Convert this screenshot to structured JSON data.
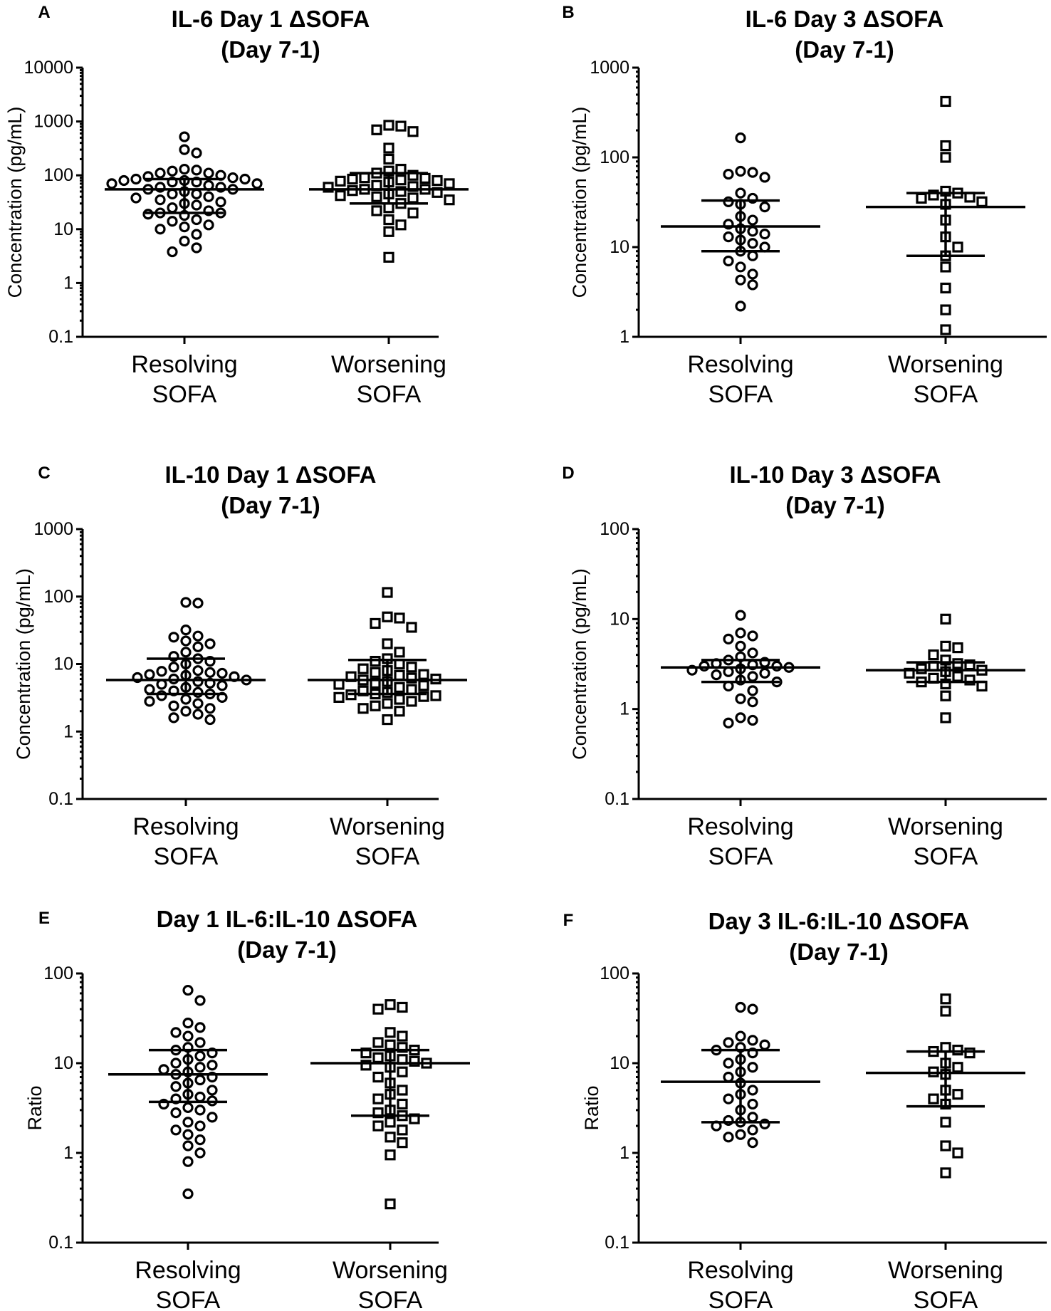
{
  "chart_data": [
    {
      "panel": "A",
      "type": "scatter",
      "title_line1": "IL-6 Day 1 ΔSOFA",
      "title_line2": "(Day 7-1)",
      "ylabel": "Concentration (pg/mL)",
      "yscale": "log",
      "ylim": [
        0.1,
        10000
      ],
      "yticks": [
        "0.1",
        "1",
        "10",
        "100",
        "1000",
        "10000"
      ],
      "categories": [
        {
          "line1": "Resolving",
          "line2": "SOFA",
          "marker": "circle",
          "values": [
            520,
            300,
            260,
            130,
            125,
            120,
            110,
            110,
            100,
            95,
            90,
            85,
            85,
            80,
            80,
            75,
            75,
            70,
            70,
            65,
            60,
            60,
            55,
            55,
            50,
            45,
            45,
            40,
            38,
            35,
            32,
            30,
            28,
            25,
            22,
            20,
            20,
            19,
            18,
            15,
            14,
            12,
            11,
            10,
            8,
            6,
            4.5,
            3.8
          ],
          "median": 55,
          "q1": 20,
          "q3": 85
        },
        {
          "line1": "Worsening",
          "line2": "SOFA",
          "marker": "square",
          "values": [
            850,
            820,
            700,
            650,
            320,
            200,
            130,
            120,
            110,
            100,
            90,
            88,
            85,
            82,
            80,
            78,
            75,
            70,
            65,
            62,
            60,
            55,
            55,
            52,
            50,
            48,
            45,
            42,
            40,
            38,
            35,
            30,
            25,
            22,
            20,
            15,
            12,
            9,
            3
          ],
          "median": 55,
          "q1": 30,
          "q3": 110
        }
      ]
    },
    {
      "panel": "B",
      "type": "scatter",
      "title_line1": "IL-6 Day 3 ΔSOFA",
      "title_line2": "(Day 7-1)",
      "ylabel": "Concentration (pg/mL)",
      "yscale": "log",
      "ylim": [
        1,
        1000
      ],
      "yticks": [
        "1",
        "10",
        "100",
        "1000"
      ],
      "categories": [
        {
          "line1": "Resolving",
          "line2": "SOFA",
          "marker": "circle",
          "values": [
            165,
            70,
            68,
            65,
            60,
            40,
            35,
            32,
            30,
            28,
            22,
            20,
            18,
            16,
            15,
            14,
            13,
            12,
            11,
            10,
            9,
            8,
            7,
            6,
            5,
            4.3,
            3.8,
            2.2
          ],
          "median": 17,
          "q1": 9,
          "q3": 33
        },
        {
          "line1": "Worsening",
          "line2": "SOFA",
          "marker": "square",
          "values": [
            420,
            135,
            100,
            42,
            40,
            38,
            36,
            35,
            32,
            30,
            20,
            13,
            10,
            8,
            6,
            3.5,
            2,
            1.2
          ],
          "median": 28,
          "q1": 8,
          "q3": 40
        }
      ]
    },
    {
      "panel": "C",
      "type": "scatter",
      "title_line1": "IL-10 Day 1 ΔSOFA",
      "title_line2": "(Day 7-1)",
      "ylabel": "Concentration (pg/mL)",
      "yscale": "log",
      "ylim": [
        0.1,
        1000
      ],
      "yticks": [
        "0.1",
        "1",
        "10",
        "100",
        "1000"
      ],
      "categories": [
        {
          "line1": "Resolving",
          "line2": "SOFA",
          "marker": "circle",
          "values": [
            82,
            80,
            32,
            26,
            25,
            22,
            20,
            18,
            15,
            13,
            12,
            11,
            10,
            9,
            8,
            7.8,
            7.5,
            7.3,
            7,
            6.8,
            6.5,
            6.3,
            6,
            5.8,
            5.5,
            5.2,
            5,
            4.8,
            4.5,
            4.2,
            4,
            3.8,
            3.6,
            3.4,
            3.2,
            3,
            2.8,
            2.6,
            2.4,
            2.2,
            2,
            1.8,
            1.6,
            1.5
          ],
          "median": 5.8,
          "q1": 3.6,
          "q3": 12
        },
        {
          "line1": "Worsening",
          "line2": "SOFA",
          "marker": "square",
          "values": [
            115,
            50,
            48,
            40,
            35,
            20,
            15,
            12,
            11,
            10,
            9,
            8.5,
            8,
            7.5,
            7,
            6.8,
            6.5,
            6.2,
            6,
            5.8,
            5.5,
            5.2,
            5,
            4.8,
            4.5,
            4.2,
            4,
            3.8,
            3.6,
            3.5,
            3.4,
            3.3,
            3.2,
            3,
            2.8,
            2.6,
            2.4,
            2.2,
            2,
            1.5
          ],
          "median": 5.8,
          "q1": 3.6,
          "q3": 11.5
        }
      ]
    },
    {
      "panel": "D",
      "type": "scatter",
      "title_line1": "IL-10 Day 3 ΔSOFA",
      "title_line2": "(Day 7-1)",
      "ylabel": "Concentration (pg/mL)",
      "yscale": "log",
      "ylim": [
        0.1,
        100
      ],
      "yticks": [
        "0.1",
        "1",
        "10",
        "100"
      ],
      "categories": [
        {
          "line1": "Resolving",
          "line2": "SOFA",
          "marker": "circle",
          "values": [
            11,
            7,
            6.5,
            6,
            5,
            4.2,
            3.8,
            3.5,
            3.3,
            3.2,
            3.1,
            3,
            3,
            2.9,
            2.8,
            2.7,
            2.6,
            2.5,
            2.4,
            2.3,
            2.1,
            2,
            1.8,
            1.6,
            1.3,
            1.2,
            0.8,
            0.75,
            0.7
          ],
          "median": 2.9,
          "q1": 2,
          "q3": 3.5
        },
        {
          "line1": "Worsening",
          "line2": "SOFA",
          "marker": "square",
          "values": [
            10,
            5,
            4.8,
            4,
            3.5,
            3.2,
            3.1,
            3,
            2.8,
            2.7,
            2.6,
            2.5,
            2.3,
            2.2,
            2.1,
            2,
            1.9,
            1.8,
            1.4,
            0.8
          ],
          "median": 2.7,
          "q1": 2,
          "q3": 3.3
        }
      ]
    },
    {
      "panel": "E",
      "type": "scatter",
      "title_line1": "Day 1 IL-6:IL-10 ΔSOFA",
      "title_line2": "(Day 7-1)",
      "ylabel": "Ratio",
      "yscale": "log",
      "ylim": [
        0.1,
        100
      ],
      "yticks": [
        "0.1",
        "1",
        "10",
        "100"
      ],
      "categories": [
        {
          "line1": "Resolving",
          "line2": "SOFA",
          "marker": "circle",
          "values": [
            65,
            50,
            28,
            25,
            22,
            20,
            17,
            15,
            14,
            13,
            12,
            11,
            10,
            9.5,
            9,
            8.5,
            8,
            7.5,
            7,
            6.5,
            6,
            5.5,
            5,
            4.5,
            4.2,
            4,
            3.8,
            3.5,
            3.2,
            3,
            2.8,
            2.5,
            2.2,
            2,
            1.8,
            1.6,
            1.4,
            1.2,
            1,
            0.8,
            0.35
          ],
          "median": 7.5,
          "q1": 3.7,
          "q3": 14
        },
        {
          "line1": "Worsening",
          "line2": "SOFA",
          "marker": "square",
          "values": [
            45,
            42,
            40,
            22,
            20,
            17,
            16,
            15,
            14,
            13,
            12,
            11.5,
            11,
            10.5,
            10,
            9.5,
            9,
            8,
            7,
            6,
            5,
            4.5,
            4,
            3.5,
            3,
            2.8,
            2.6,
            2.4,
            2.2,
            2,
            1.8,
            1.5,
            1.3,
            0.95,
            0.27
          ],
          "median": 10,
          "q1": 2.6,
          "q3": 14
        }
      ]
    },
    {
      "panel": "F",
      "type": "scatter",
      "title_line1": "Day 3 IL-6:IL-10 ΔSOFA",
      "title_line2": "(Day 7-1)",
      "ylabel": "Ratio",
      "yscale": "log",
      "ylim": [
        0.1,
        100
      ],
      "yticks": [
        "0.1",
        "1",
        "10",
        "100"
      ],
      "categories": [
        {
          "line1": "Resolving",
          "line2": "SOFA",
          "marker": "circle",
          "values": [
            42,
            40,
            20,
            18,
            17,
            16,
            15,
            14,
            13,
            11,
            10,
            9,
            8,
            7,
            6,
            5,
            4.5,
            4,
            3.5,
            3,
            2.5,
            2.3,
            2.2,
            2.1,
            2,
            1.8,
            1.6,
            1.5,
            1.3
          ],
          "median": 6.2,
          "q1": 2.2,
          "q3": 14
        },
        {
          "line1": "Worsening",
          "line2": "SOFA",
          "marker": "square",
          "values": [
            52,
            38,
            15,
            14,
            13.5,
            13,
            10,
            9,
            8,
            7.5,
            5,
            4.5,
            4,
            3.5,
            2.2,
            1.2,
            1,
            0.6
          ],
          "median": 7.8,
          "q1": 3.3,
          "q3": 13.5
        }
      ]
    }
  ]
}
